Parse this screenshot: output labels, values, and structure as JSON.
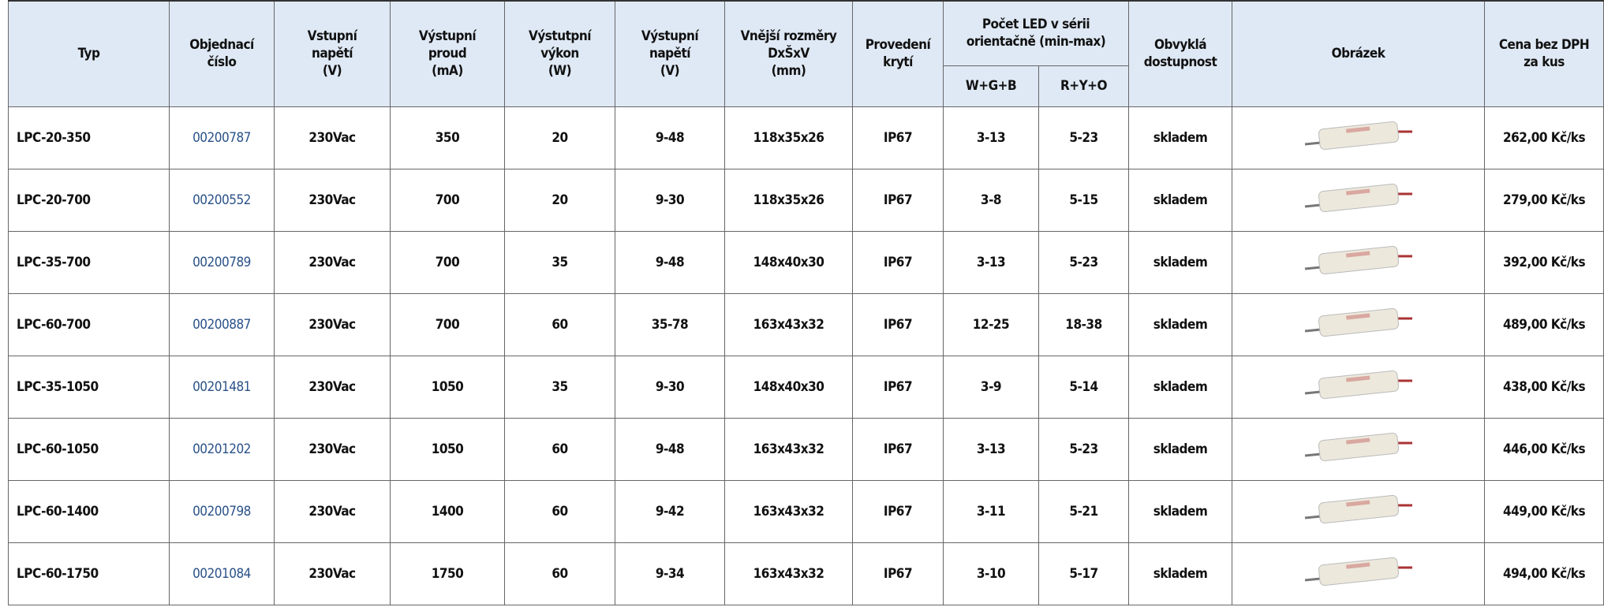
{
  "table": {
    "headers": [
      [
        "Typ"
      ],
      [
        "Objednací",
        "číslo"
      ],
      [
        "Vstupní",
        "napětí",
        "(V)"
      ],
      [
        "Výstupní",
        "proud",
        "(mA)"
      ],
      [
        "Výstutpní",
        "výkon",
        "(W)"
      ],
      [
        "Výstupní",
        "napětí",
        "(V)"
      ],
      [
        "Vnější rozměry",
        "DxŠxV",
        "(mm)"
      ],
      [
        "Provedení",
        "krytí"
      ],
      [
        "Počet LED v sérii",
        "orientačně (min-max)"
      ],
      [
        "Obvyklá",
        "dostupnost"
      ],
      [
        "Obrázek"
      ],
      [
        "Cena bez DPH",
        "za kus"
      ]
    ],
    "led_subheaders": [
      "W+G+B",
      "R+Y+O"
    ],
    "rows": [
      [
        "LPC-20-350",
        "00200787",
        "230Vac",
        "350",
        "20",
        "9-48",
        "118x35x26",
        "IP67",
        "3-13",
        "5-23",
        "skladem",
        "262,00 Kč/ks"
      ],
      [
        "LPC-20-700",
        "00200552",
        "230Vac",
        "700",
        "20",
        "9-30",
        "118x35x26",
        "IP67",
        "3-8",
        "5-15",
        "skladem",
        "279,00 Kč/ks"
      ],
      [
        "LPC-35-700",
        "00200789",
        "230Vac",
        "700",
        "35",
        "9-48",
        "148x40x30",
        "IP67",
        "3-13",
        "5-23",
        "skladem",
        "392,00 Kč/ks"
      ],
      [
        "LPC-60-700",
        "00200887",
        "230Vac",
        "700",
        "60",
        "35-78",
        "163x43x32",
        "IP67",
        "12-25",
        "18-38",
        "skladem",
        "489,00 Kč/ks"
      ],
      [
        "LPC-35-1050",
        "00201481",
        "230Vac",
        "1050",
        "35",
        "9-30",
        "148x40x30",
        "IP67",
        "3-9",
        "5-14",
        "skladem",
        "438,00 Kč/ks"
      ],
      [
        "LPC-60-1050",
        "00201202",
        "230Vac",
        "1050",
        "60",
        "9-48",
        "163x43x32",
        "IP67",
        "3-13",
        "5-23",
        "skladem",
        "446,00 Kč/ks"
      ],
      [
        "LPC-60-1400",
        "00200798",
        "230Vac",
        "1400",
        "60",
        "9-42",
        "163x43x32",
        "IP67",
        "3-11",
        "5-21",
        "skladem",
        "449,00 Kč/ks"
      ],
      [
        "LPC-60-1750",
        "00201084",
        "230Vac",
        "1750",
        "60",
        "9-34",
        "163x43x32",
        "IP67",
        "3-10",
        "5-17",
        "skladem",
        "494,00 Kč/ks"
      ]
    ]
  }
}
